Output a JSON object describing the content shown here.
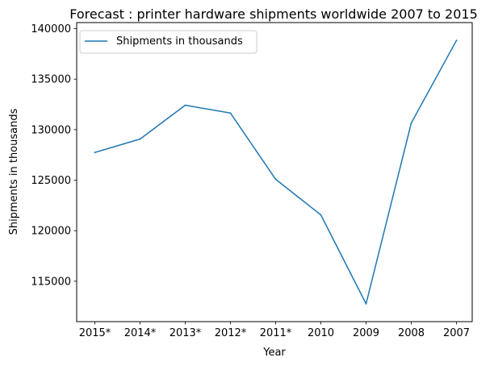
{
  "chart_data": {
    "type": "line",
    "title": "Forecast : printer hardware shipments worldwide 2007 to 2015",
    "xlabel": "Year",
    "ylabel": "Shipments in thousands",
    "categories": [
      "2015*",
      "2014*",
      "2013*",
      "2012*",
      "2011*",
      "2010",
      "2009",
      "2008",
      "2007"
    ],
    "series": [
      {
        "name": "Shipments in thousands",
        "color": "#1f77b4",
        "values": [
          127750,
          129070,
          132420,
          131640,
          125090,
          121560,
          112760,
          130660,
          138830
        ]
      }
    ],
    "ylim": [
      111000,
      140600
    ],
    "yticks": [
      115000,
      120000,
      125000,
      130000,
      135000,
      140000
    ],
    "grid": false,
    "legend_position": "upper-left"
  }
}
